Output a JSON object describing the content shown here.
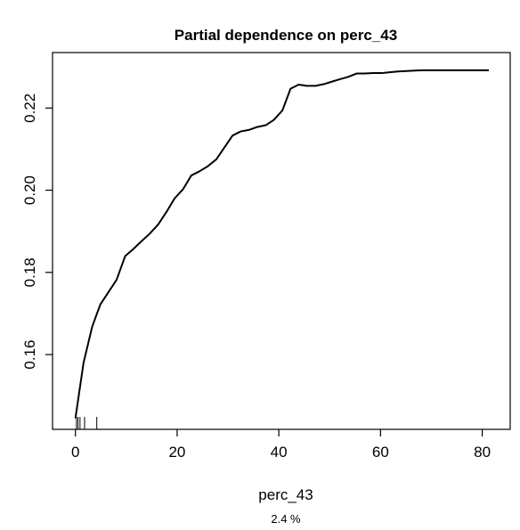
{
  "chart_data": {
    "type": "line",
    "title": "Partial dependence on perc_43",
    "xlabel": "perc_43",
    "sublabel": "2.4 %",
    "ylabel": "",
    "xlim": [
      -4.5,
      85.5
    ],
    "ylim": [
      0.1418,
      0.2335
    ],
    "xticks": [
      0,
      20,
      40,
      60,
      80
    ],
    "yticks": [
      0.16,
      0.18,
      0.2,
      0.22
    ],
    "ytick_labels": [
      "0.16",
      "0.18",
      "0.20",
      "0.22"
    ],
    "grid": false,
    "legend": "none",
    "line_color": "#000000",
    "series": [
      {
        "x": [
          0,
          1.6,
          3.3,
          4.9,
          6.5,
          8.1,
          9.8,
          11.4,
          13.0,
          14.6,
          16.3,
          17.9,
          19.5,
          21.2,
          22.8,
          24.4,
          26.0,
          27.7,
          29.3,
          30.9,
          32.5,
          34.2,
          35.8,
          37.4,
          39.0,
          40.7,
          42.3,
          43.9,
          45.5,
          47.2,
          48.8,
          50.4,
          52.0,
          53.7,
          55.3,
          56.9,
          58.6,
          60.2,
          61.8,
          63.4,
          65.1,
          66.7,
          68.3,
          69.9,
          71.6,
          73.2,
          74.8,
          76.4,
          78.1,
          79.7,
          81.3
        ],
        "y": [
          0.1445,
          0.158,
          0.1668,
          0.1722,
          0.1752,
          0.1782,
          0.184,
          0.1857,
          0.1876,
          0.1894,
          0.1917,
          0.1947,
          0.198,
          0.2003,
          0.2036,
          0.2046,
          0.2058,
          0.2075,
          0.2104,
          0.2133,
          0.2143,
          0.2147,
          0.2154,
          0.2158,
          0.2171,
          0.2194,
          0.2247,
          0.2257,
          0.2254,
          0.2254,
          0.2258,
          0.2264,
          0.227,
          0.2276,
          0.2284,
          0.2284,
          0.2285,
          0.2285,
          0.2287,
          0.2289,
          0.229,
          0.2291,
          0.2292,
          0.2292,
          0.2292,
          0.2292,
          0.2292,
          0.2292,
          0.2292,
          0.2292,
          0.2292
        ]
      }
    ],
    "rug_x": [
      0.2,
      0.5,
      0.9,
      1.8,
      4.2
    ]
  }
}
